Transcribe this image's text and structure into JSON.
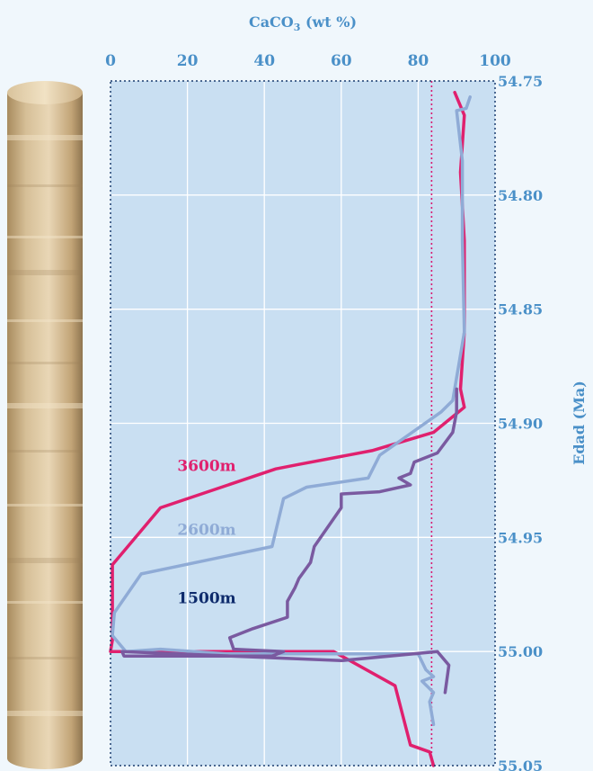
{
  "colors": {
    "background": "#f0f7fc",
    "plot_bg": "#c9dff2",
    "grid": "#ffffff",
    "axis_text": "#4a90c8",
    "core_light": "#e8d5b2",
    "core_mid": "#c9ad80",
    "core_dark": "#a08559"
  },
  "chart_data": {
    "type": "line",
    "orientation": "vertical-profile",
    "title": "",
    "xlabel_main": "CaCO",
    "xlabel_sub": "3",
    "xlabel_rest": " (wt %)",
    "ylabel": "Edad (Ma)",
    "xlim": [
      0,
      100
    ],
    "ylim": [
      54.75,
      55.05
    ],
    "y_reversed": true,
    "x_ticks": [
      "0",
      "20",
      "40",
      "60",
      "80",
      "100"
    ],
    "x_tick_values": [
      0,
      20,
      40,
      60,
      80,
      100
    ],
    "y_ticks": [
      "54.75",
      "54.80",
      "54.85",
      "54.90",
      "54.95",
      "55.00",
      "55.05"
    ],
    "y_tick_values": [
      54.75,
      54.8,
      54.85,
      54.9,
      54.95,
      55.0,
      55.05
    ],
    "x_axis_position": "top",
    "y_axis_position": "right",
    "grid": true,
    "reference_line": {
      "x": 83.5,
      "style": "dotted",
      "color": "#d81b72"
    },
    "series": [
      {
        "name": "3600m",
        "color": "#e0206e",
        "points": [
          [
            89.5,
            54.755
          ],
          [
            92,
            54.765
          ],
          [
            91,
            54.79
          ],
          [
            92,
            54.82
          ],
          [
            92,
            54.86
          ],
          [
            91,
            54.885
          ],
          [
            92,
            54.893
          ],
          [
            84,
            54.904
          ],
          [
            68,
            54.912
          ],
          [
            49,
            54.918
          ],
          [
            43,
            54.92
          ],
          [
            13,
            54.937
          ],
          [
            0.5,
            54.962
          ],
          [
            0.5,
            54.995
          ],
          [
            0,
            55.0
          ],
          [
            58,
            55.0
          ],
          [
            74,
            55.015
          ],
          [
            78,
            55.041
          ],
          [
            83,
            55.044
          ],
          [
            84,
            55.05
          ]
        ]
      },
      {
        "name": "2600m",
        "color": "#8fabd6",
        "points": [
          [
            93.5,
            54.757
          ],
          [
            92.5,
            54.762
          ],
          [
            90,
            54.763
          ],
          [
            91.5,
            54.785
          ],
          [
            91.5,
            54.82
          ],
          [
            92,
            54.86
          ],
          [
            89,
            54.89
          ],
          [
            86,
            54.895
          ],
          [
            70,
            54.914
          ],
          [
            67,
            54.924
          ],
          [
            51,
            54.928
          ],
          [
            45,
            54.933
          ],
          [
            42,
            54.954
          ],
          [
            8,
            54.966
          ],
          [
            1,
            54.983
          ],
          [
            0.5,
            54.993
          ],
          [
            4,
            55.0
          ],
          [
            13,
            54.999
          ],
          [
            30,
            55.001
          ],
          [
            60,
            55.001
          ],
          [
            80,
            55.001
          ],
          [
            82,
            55.008
          ],
          [
            84,
            55.011
          ],
          [
            81,
            55.013
          ],
          [
            84,
            55.018
          ],
          [
            83,
            55.022
          ],
          [
            84,
            55.032
          ]
        ]
      },
      {
        "name": "1500m",
        "color": "#7a5aa0",
        "points": [
          [
            90,
            54.885
          ],
          [
            90,
            54.895
          ],
          [
            89,
            54.904
          ],
          [
            85,
            54.913
          ],
          [
            79,
            54.917
          ],
          [
            78,
            54.922
          ],
          [
            75,
            54.924
          ],
          [
            78,
            54.927
          ],
          [
            70,
            54.93
          ],
          [
            60,
            54.931
          ],
          [
            60,
            54.937
          ],
          [
            53,
            54.954
          ],
          [
            52,
            54.961
          ],
          [
            49,
            54.968
          ],
          [
            48,
            54.972
          ],
          [
            46,
            54.978
          ],
          [
            46,
            54.985
          ],
          [
            37,
            54.99
          ],
          [
            31,
            54.994
          ],
          [
            32,
            54.999
          ],
          [
            45,
            55.0
          ],
          [
            42,
            55.002
          ],
          [
            3.5,
            55.002
          ],
          [
            3,
            55.0
          ],
          [
            60,
            55.004
          ],
          [
            85,
            55.0
          ],
          [
            88,
            55.006
          ],
          [
            87,
            55.018
          ]
        ]
      }
    ],
    "series_labels": [
      {
        "series": "3600m",
        "text": "3600m",
        "color": "#e0206e",
        "at_x": 25,
        "at_y": 54.9185
      },
      {
        "series": "2600m",
        "text": "2600m",
        "color": "#8fabd6",
        "at_x": 25,
        "at_y": 54.9465
      },
      {
        "series": "1500m",
        "text": "1500m",
        "color": "#0d2a6b",
        "at_x": 25,
        "at_y": 54.9765
      }
    ]
  }
}
